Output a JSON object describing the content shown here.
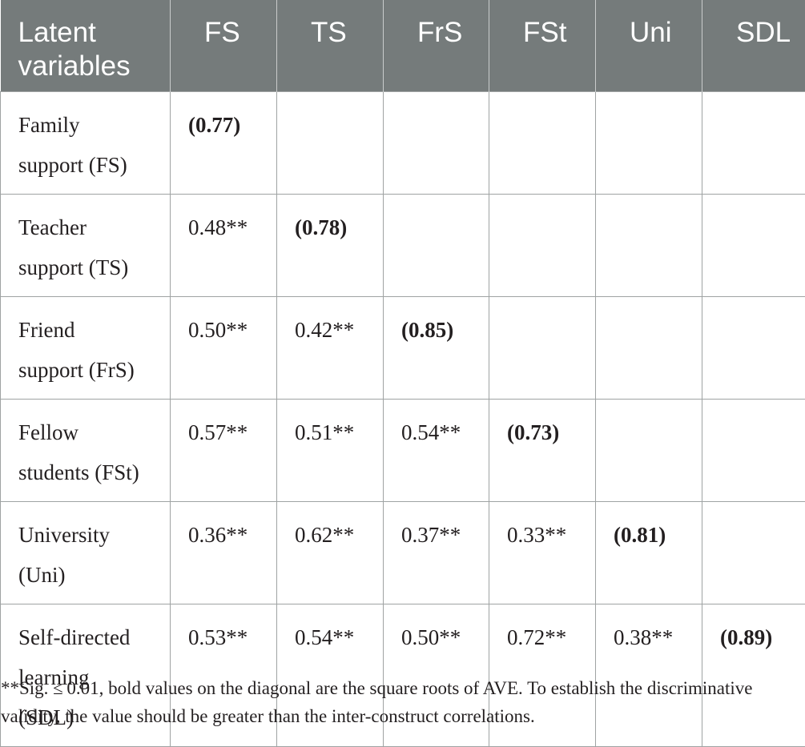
{
  "table": {
    "header": [
      "Latent\nvariables",
      "FS",
      "TS",
      "FrS",
      "FSt",
      "Uni",
      "SDL"
    ],
    "rows": [
      {
        "label": [
          "Family",
          "support (FS)"
        ],
        "cells": [
          "(0.77)",
          "",
          "",
          "",
          "",
          ""
        ],
        "diag_index": 0
      },
      {
        "label": [
          "Teacher",
          "support (TS)"
        ],
        "cells": [
          "0.48**",
          "(0.78)",
          "",
          "",
          "",
          ""
        ],
        "diag_index": 1
      },
      {
        "label": [
          "Friend",
          "support (FrS)"
        ],
        "cells": [
          "0.50**",
          "0.42**",
          "(0.85)",
          "",
          "",
          ""
        ],
        "diag_index": 2
      },
      {
        "label": [
          "Fellow",
          "students (FSt)"
        ],
        "cells": [
          "0.57**",
          "0.51**",
          "0.54**",
          "(0.73)",
          "",
          ""
        ],
        "diag_index": 3
      },
      {
        "label": [
          "University",
          "(Uni)"
        ],
        "cells": [
          "0.36**",
          "0.62**",
          "0.37**",
          "0.33**",
          "(0.81)",
          ""
        ],
        "diag_index": 4
      },
      {
        "label": [
          "Self-directed",
          "learning",
          "(SDL)"
        ],
        "cells": [
          "0.53**",
          "0.54**",
          "0.50**",
          "0.72**",
          "0.38**",
          "(0.89)"
        ],
        "diag_index": 5
      }
    ]
  },
  "footnote": "**Sig. ≤ 0.01, bold values on the diagonal are the square roots of AVE. To establish the discriminative validity, the value should be greater than the inter-construct correlations."
}
